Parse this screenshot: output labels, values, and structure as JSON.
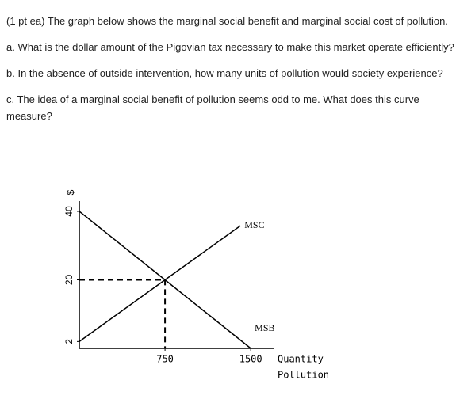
{
  "questions": [
    "(1 pt ea) The graph below shows the marginal social benefit and marginal social cost of pollution.",
    "a.  What is the dollar amount of the Pigovian tax necessary to make this market operate efficiently?",
    "b.  In the absence of outside intervention, how many units of pollution would society experience?",
    "c.  The idea of a marginal social benefit of pollution seems odd to me.  What does this curve measure?"
  ],
  "chart_data": {
    "type": "line",
    "y_label": "$",
    "x_label": [
      "Quantity",
      "Pollution"
    ],
    "xlim": [
      0,
      1700
    ],
    "ylim": [
      0,
      43
    ],
    "xticks": [
      750,
      1500
    ],
    "yticks": [
      2,
      20,
      40
    ],
    "color": "#000000",
    "series": [
      {
        "name": "MSC",
        "x": [
          0,
          750,
          1410
        ],
        "values": [
          2,
          20,
          35.8
        ]
      },
      {
        "name": "MSB",
        "x": [
          0,
          750,
          1500
        ],
        "values": [
          40,
          20,
          0
        ]
      }
    ],
    "equilibrium": {
      "x": 750,
      "y": 20
    }
  }
}
